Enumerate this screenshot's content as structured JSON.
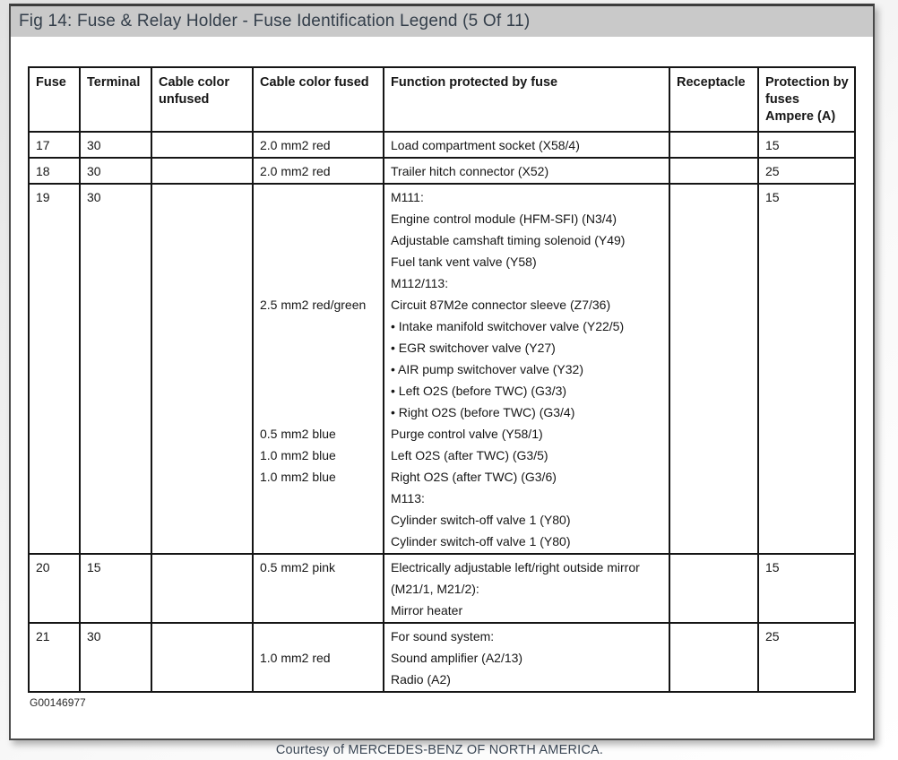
{
  "title_bar": {
    "text": "Fig 14: Fuse & Relay Holder - Fuse Identification Legend (5 Of 11)"
  },
  "table": {
    "headers": [
      "Fuse",
      "Terminal",
      "Cable color\nunfused",
      "Cable color fused",
      "Function protected by fuse",
      "Receptacle",
      "Protection by\nfuses\nAmpere (A)"
    ],
    "rows": [
      {
        "fuse": "17",
        "terminal": "30",
        "cable_unfused": "",
        "receptacle": "",
        "amps": "15",
        "lines": [
          {
            "cable": "2.0 mm2 red",
            "func": "Load compartment socket (X58/4)"
          }
        ]
      },
      {
        "fuse": "18",
        "terminal": "30",
        "cable_unfused": "",
        "receptacle": "",
        "amps": "25",
        "lines": [
          {
            "cable": "2.0 mm2 red",
            "func": "Trailer hitch connector (X52)"
          }
        ]
      },
      {
        "fuse": "19",
        "terminal": "30",
        "cable_unfused": "",
        "receptacle": "",
        "amps": "15",
        "lines": [
          {
            "cable": "",
            "func": "M111:"
          },
          {
            "cable": "",
            "func": "Engine control module (HFM-SFI) (N3/4)"
          },
          {
            "cable": "",
            "func": "Adjustable camshaft timing solenoid (Y49)"
          },
          {
            "cable": "",
            "func": "Fuel tank vent valve (Y58)"
          },
          {
            "cable": "",
            "func": "M112/113:"
          },
          {
            "cable": "2.5 mm2 red/green",
            "func": "Circuit 87M2e connector sleeve (Z7/36)"
          },
          {
            "cable": "",
            "func": "• Intake manifold switchover valve (Y22/5)"
          },
          {
            "cable": "",
            "func": "• EGR switchover valve (Y27)"
          },
          {
            "cable": "",
            "func": "• AIR pump switchover valve (Y32)"
          },
          {
            "cable": "",
            "func": "• Left O2S (before TWC) (G3/3)"
          },
          {
            "cable": "",
            "func": "• Right O2S (before TWC) (G3/4)"
          },
          {
            "cable": "0.5 mm2 blue",
            "func": "Purge control valve (Y58/1)"
          },
          {
            "cable": "1.0 mm2 blue",
            "func": "Left O2S (after TWC) (G3/5)"
          },
          {
            "cable": "1.0 mm2 blue",
            "func": "Right O2S (after TWC) (G3/6)"
          },
          {
            "cable": "",
            "func": "M113:"
          },
          {
            "cable": "",
            "func": "Cylinder switch-off valve 1 (Y80)"
          },
          {
            "cable": "",
            "func": "Cylinder switch-off valve 1 (Y80)"
          }
        ]
      },
      {
        "fuse": "20",
        "terminal": "15",
        "cable_unfused": "",
        "receptacle": "",
        "amps": "15",
        "lines": [
          {
            "cable": "0.5 mm2 pink",
            "func": "Electrically adjustable left/right outside mirror"
          },
          {
            "cable": "",
            "func": "(M21/1, M21/2):"
          },
          {
            "cable": "",
            "func": "Mirror heater"
          }
        ]
      },
      {
        "fuse": "21",
        "terminal": "30",
        "cable_unfused": "",
        "receptacle": "",
        "amps": "25",
        "lines": [
          {
            "cable": "",
            "func": "For sound system:"
          },
          {
            "cable": "1.0 mm2 red",
            "func": "Sound amplifier (A2/13)"
          },
          {
            "cable": "",
            "func": "Radio (A2)"
          }
        ]
      }
    ]
  },
  "figure_id": "G00146977",
  "footer": {
    "courtesy": "Courtesy of MERCEDES-BENZ OF NORTH AMERICA."
  },
  "colors": {
    "title_bar_bg": "#c9c9c9",
    "title_text": "#333e4a",
    "table_border": "#151515",
    "courtesy_text": "#3a4654"
  }
}
